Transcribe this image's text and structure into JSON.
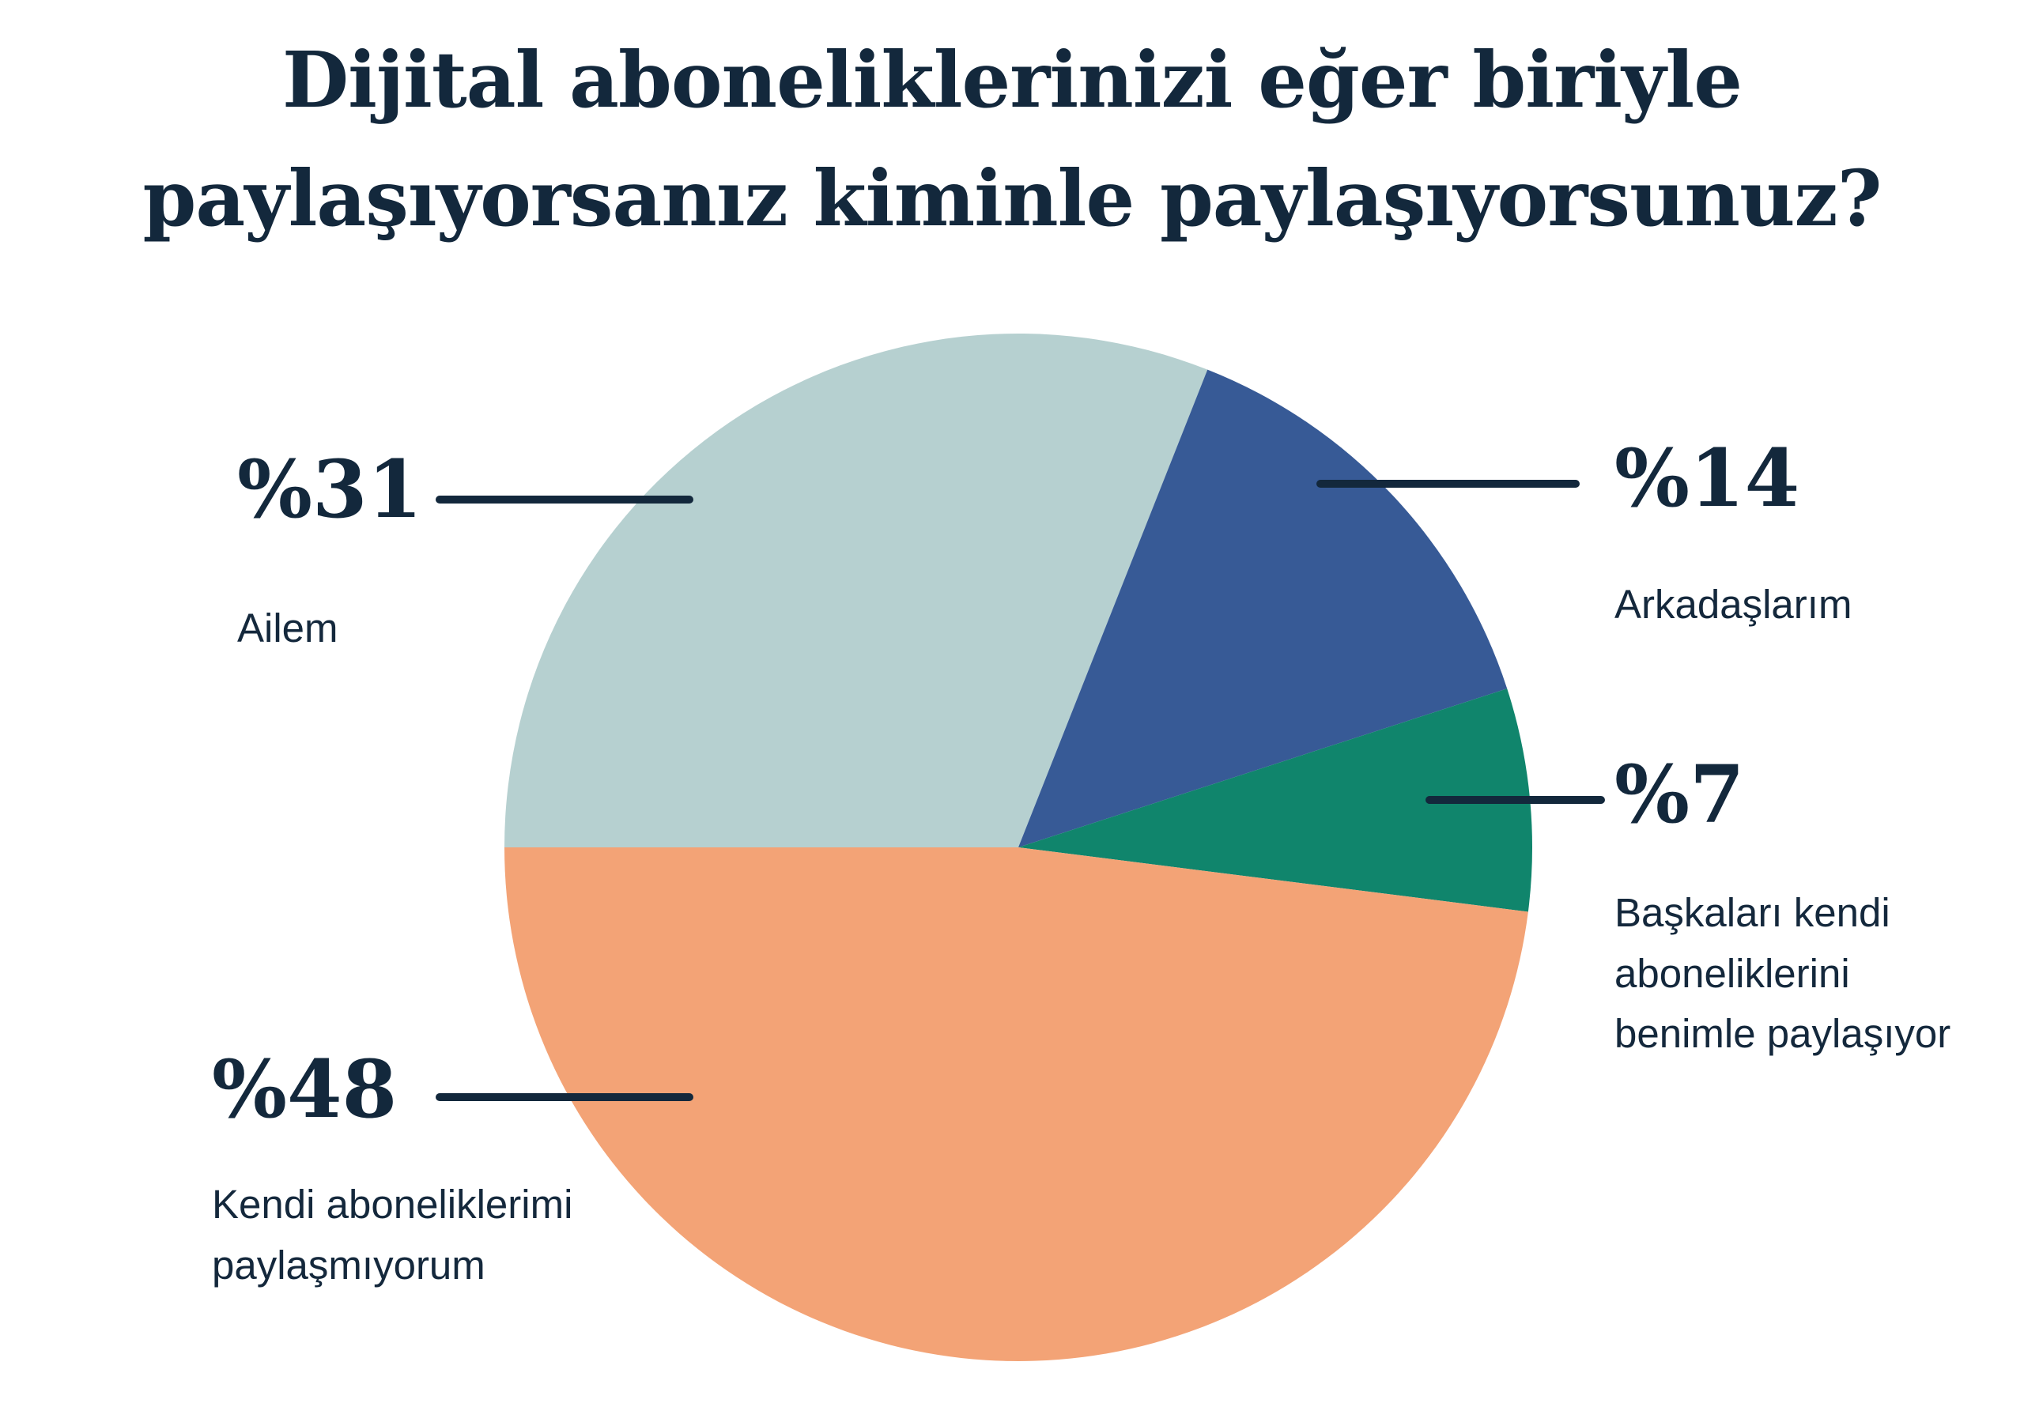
{
  "title": {
    "line1": "Dijital aboneliklerinizi eğer biriyle",
    "line2": "paylaşıyorsanız kiminle paylaşıyorsunuz?"
  },
  "chart_data": {
    "type": "pie",
    "title": "Dijital aboneliklerinizi eğer biriyle paylaşıyorsanız kiminle paylaşıyorsunuz?",
    "categories": [
      "Ailem",
      "Arkadaşlarım",
      "Başkaları kendi aboneliklerini benimle paylaşıyor",
      "Kendi aboneliklerimi paylaşmıyorum"
    ],
    "values": [
      31,
      14,
      7,
      48
    ],
    "value_prefix": "%",
    "unit": "percent",
    "colors": [
      "#b6d0d0",
      "#375a96",
      "#10856c",
      "#f3a376"
    ],
    "slice_ids": [
      "ailem",
      "arkadaslarim",
      "baskalari",
      "kendi"
    ],
    "start_angle_deg": 180,
    "direction": "clockwise",
    "legend_position": "none",
    "labels": [
      {
        "value_label": "%31",
        "text": "Ailem"
      },
      {
        "value_label": "%14",
        "text": "Arkadaşlarım"
      },
      {
        "value_label": "%7",
        "text": "Başkaları kendi aboneliklerini benimle paylaşıyor"
      },
      {
        "value_label": "%48",
        "text": "Kendi aboneliklerimi paylaşmıyorum"
      }
    ]
  },
  "style": {
    "text_color": "#13283c",
    "background": "#ffffff"
  }
}
